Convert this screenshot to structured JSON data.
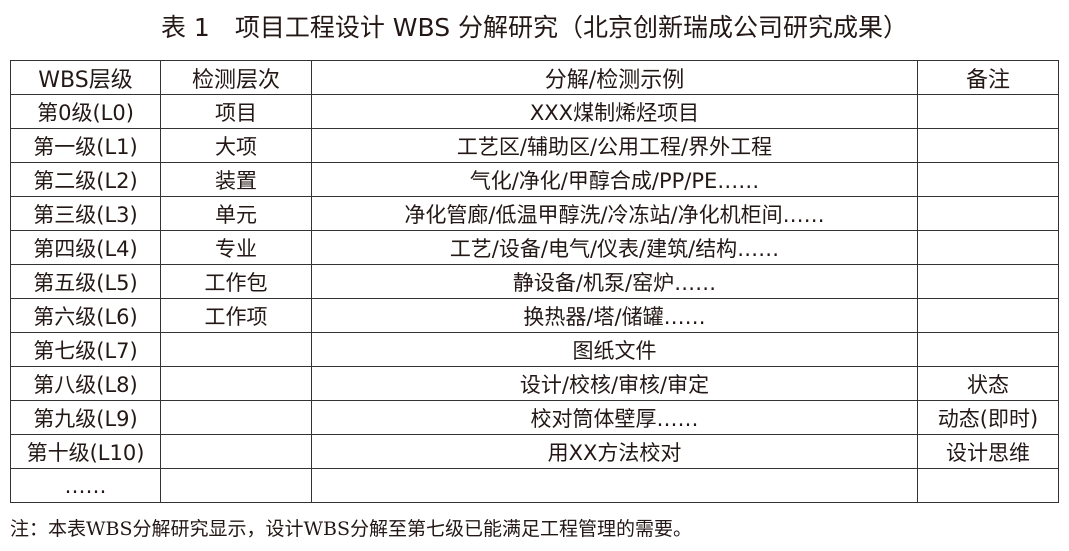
{
  "title": "表 1　项目工程设计 WBS 分解研究（北京创新瑞成公司研究成果）",
  "headers": [
    "WBS层级",
    "检测层次",
    "分解/检测示例",
    "备注"
  ],
  "rows": [
    [
      "第0级(L0)",
      "项目",
      "XXX煤制烯烃项目",
      ""
    ],
    [
      "第一级(L1)",
      "大项",
      "工艺区/辅助区/公用工程/界外工程",
      ""
    ],
    [
      "第二级(L2)",
      "装置",
      "气化/净化/甲醇合成/PP/PE……",
      ""
    ],
    [
      "第三级(L3)",
      "单元",
      "净化管廊/低温甲醇洗/冷冻站/净化机柜间……",
      ""
    ],
    [
      "第四级(L4)",
      "专业",
      "工艺/设备/电气/仪表/建筑/结构……",
      ""
    ],
    [
      "第五级(L5)",
      "工作包",
      "静设备/机泵/窑炉……",
      ""
    ],
    [
      "第六级(L6)",
      "工作项",
      "换热器/塔/储罐……",
      ""
    ],
    [
      "第七级(L7)",
      "",
      "图纸文件",
      ""
    ],
    [
      "第八级(L8)",
      "",
      "设计/校核/审核/审定",
      "状态"
    ],
    [
      "第九级(L9)",
      "",
      "校对筒体壁厚……",
      "动态(即时)"
    ],
    [
      "第十级(L10)",
      "",
      "用XX方法校对",
      "设计思维"
    ],
    [
      "……",
      "",
      "",
      ""
    ]
  ],
  "note": "注：本表WBS分解研究显示，设计WBS分解至第七级已能满足工程管理的需要。"
}
